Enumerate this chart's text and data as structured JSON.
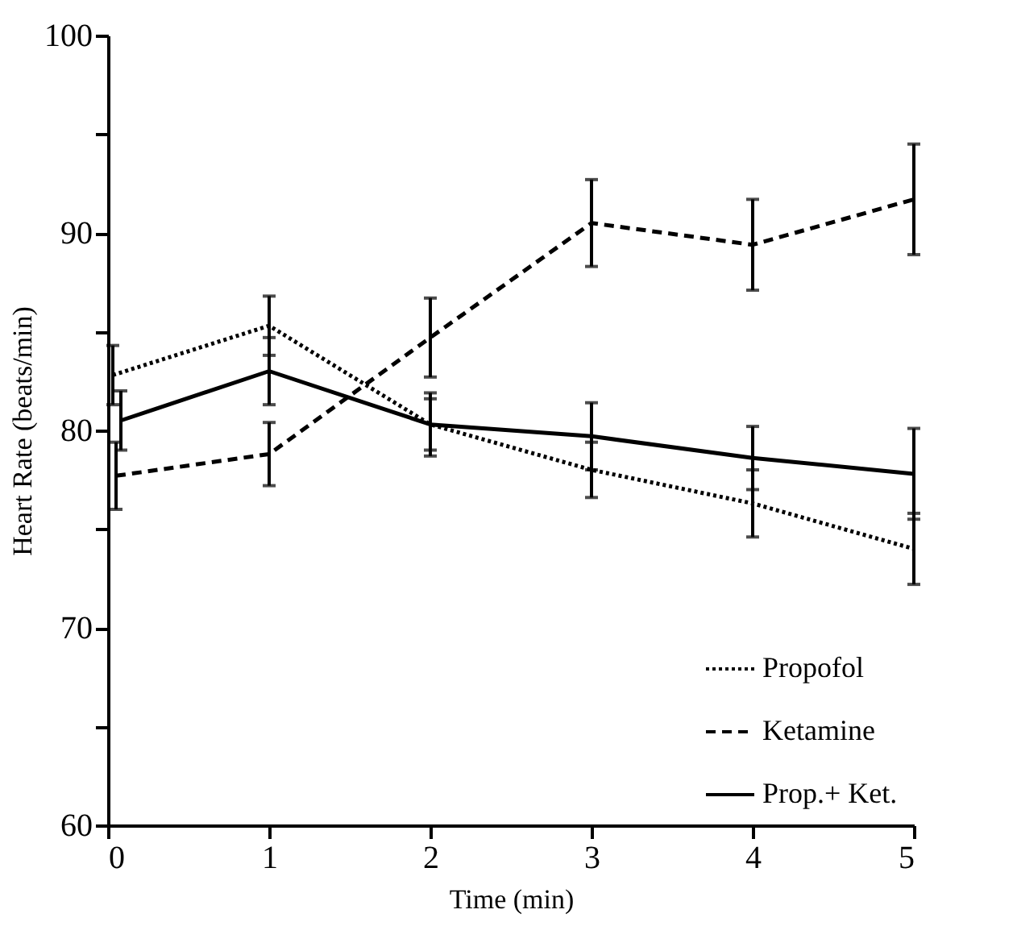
{
  "chart_data": {
    "type": "line",
    "xlabel": "Time (min)",
    "ylabel": "Heart Rate (beats/min)",
    "xlim": [
      0,
      5
    ],
    "xticks": [
      0,
      1,
      2,
      3,
      4,
      5
    ],
    "ylim": [
      60,
      100
    ],
    "yticks": [
      60,
      {
        "value": 65,
        "label": null
      },
      70,
      {
        "value": 75,
        "label": null
      },
      80,
      {
        "value": 85,
        "label": null
      },
      90,
      {
        "value": 95,
        "label": null
      },
      100
    ],
    "series": [
      {
        "name": "Propofol",
        "color": "#000000",
        "line_style": "dotted",
        "x": [
          0.03,
          1,
          2,
          3,
          4,
          5
        ],
        "values": [
          82.8,
          85.3,
          80.3,
          78.0,
          76.3,
          74.0
        ],
        "errors": [
          1.5,
          1.5,
          1.3,
          1.4,
          1.7,
          1.8
        ]
      },
      {
        "name": "Ketamine",
        "color": "#000000",
        "line_style": "dashed",
        "x": [
          0.05,
          1,
          2,
          3,
          4,
          5
        ],
        "values": [
          77.7,
          78.8,
          84.7,
          90.5,
          89.4,
          91.7
        ],
        "errors": [
          1.7,
          1.6,
          2.0,
          2.2,
          2.3,
          2.8
        ]
      },
      {
        "name": "Prop.+ Ket.",
        "color": "#000000",
        "line_style": "solid",
        "x": [
          0.08,
          1,
          2,
          3,
          4,
          5
        ],
        "values": [
          80.5,
          83.0,
          80.3,
          79.7,
          78.6,
          77.8
        ],
        "errors": [
          1.5,
          1.7,
          1.6,
          1.7,
          1.6,
          2.3
        ]
      }
    ],
    "legend": "bottom right",
    "grid": false
  }
}
